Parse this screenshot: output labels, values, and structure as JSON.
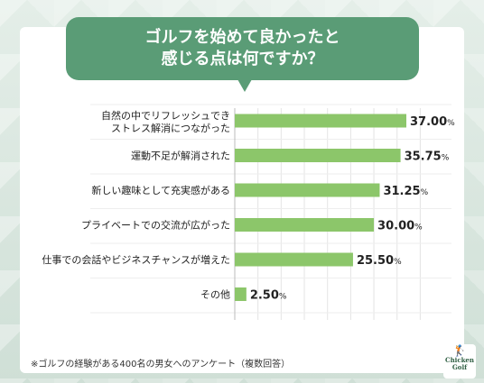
{
  "title": {
    "line1": "ゴルフを始めて良かったと",
    "line2": "感じる点は何ですか？"
  },
  "chart_data": {
    "type": "bar",
    "orientation": "horizontal",
    "categories": [
      [
        "自然の中でリフレッシュでき",
        "ストレス解消につながった"
      ],
      [
        "運動不足が解消された"
      ],
      [
        "新しい趣味として充実感がある"
      ],
      [
        "プライベートでの交流が広がった"
      ],
      [
        "仕事での会話やビジネスチャンスが増えた"
      ],
      [
        "その他"
      ]
    ],
    "values": [
      37.0,
      35.75,
      31.25,
      30.0,
      25.5,
      2.5
    ],
    "value_labels": [
      "37.00",
      "35.75",
      "31.25",
      "30.00",
      "25.50",
      "2.50"
    ],
    "unit": "%",
    "xlim": [
      0,
      40
    ],
    "bar_color": "#8cc66a",
    "grid": true
  },
  "footnote": "※ゴルフの経験がある400名の男女へのアンケート（複数回答）",
  "logo": {
    "line1": "Chicken",
    "line2": "Golf"
  }
}
